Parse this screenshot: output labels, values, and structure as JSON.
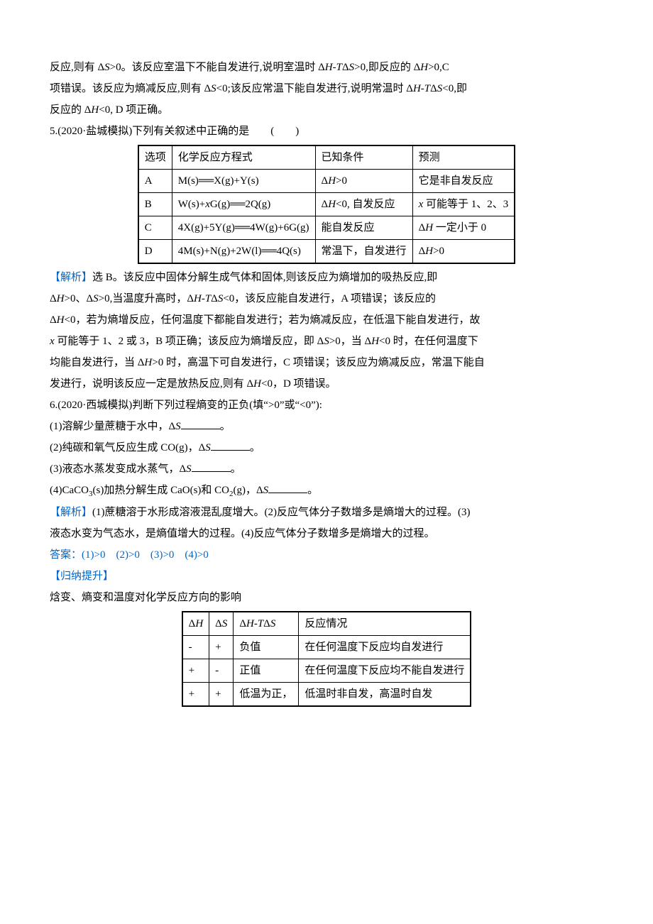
{
  "intro": {
    "p1a": "反应,则有 Δ",
    "p1b": ">0。该反应室温下不能自发进行,说明室温时 Δ",
    "p1c": "-",
    "p1d": "Δ",
    "p1e": ">0,即反应的 Δ",
    "p1f": ">0,C",
    "p2a": "项错误。该反应为熵减反应,则有 Δ",
    "p2b": "<0;该反应常温下能自发进行,说明常温时 Δ",
    "p2c": "-",
    "p2d": "Δ",
    "p2e": "<0,即",
    "p3a": "反应的 Δ",
    "p3b": "<0, D 项正确。"
  },
  "q5": {
    "title": "5.(2020·盐城模拟)下列有关叙述中正确的是　　(　　)",
    "h1": "选项",
    "h2": "化学反应方程式",
    "h3": "已知条件",
    "h4": "预测",
    "rA1": "A",
    "rA2a": "M(s)══X(g)+Y(s)",
    "rA3a": "Δ",
    "rA3b": ">0",
    "rA4": "它是非自发反应",
    "rB1": "B",
    "rB2a": "W(s)+",
    "rB2b": "G(g)══2Q(g)",
    "rB3a": "Δ",
    "rB3b": "<0, 自发反应",
    "rB4a": " 可能等于 1、2、3",
    "rC1": "C",
    "rC2": "4X(g)+5Y(g)══4W(g)+6G(g)",
    "rC3": "能自发反应",
    "rC4a": "Δ",
    "rC4b": " 一定小于 0",
    "rD1": "D",
    "rD2": "4M(s)+N(g)+2W(l)══4Q(s)",
    "rD3": "常温下，自发进行",
    "rD4a": "Δ",
    "rD4b": ">0"
  },
  "a5": {
    "p1a": "【解析】",
    "p1b": "选 B。该反应中固体分解生成气体和固体,则该反应为熵增加的吸热反应,即",
    "p2a": "Δ",
    "p2b": ">0、Δ",
    "p2c": ">0,当温度升高时，Δ",
    "p2d": "-",
    "p2e": "Δ",
    "p2f": "<0，该反应能自发进行，A 项错误；该反应的",
    "p3a": "Δ",
    "p3b": "<0，若为熵增反应，任何温度下都能自发进行；若为熵减反应，在低温下能自发进行，故",
    "p4a": " 可能等于 1、2 或 3，B 项正确；该反应为熵增反应，即 Δ",
    "p4b": ">0，当 Δ",
    "p4c": "<0 时，在任何温度下",
    "p5a": "均能自发进行，当 Δ",
    "p5b": ">0 时，高温下可自发进行，C 项错误；该反应为熵减反应，常温下能自",
    "p6a": "发进行，说明该反应一定是放热反应,则有 Δ",
    "p6b": "<0，D 项错误。"
  },
  "q6": {
    "title": "6.(2020·西城模拟)判断下列过程熵变的正负(填“>0”或“<0”):",
    "i1a": "(1)溶解少量蔗糖于水中，Δ",
    "i1b": "。",
    "i2a": "(2)纯碳和氧气反应生成 CO(g)，Δ",
    "i2b": "。",
    "i3a": "(3)液态水蒸发变成水蒸气，Δ",
    "i3b": "。",
    "i4a": "(4)CaCO",
    "i4b": "(s)加热分解生成 CaO(s)和 CO",
    "i4c": "(g)，Δ",
    "i4d": "。"
  },
  "a6": {
    "p1a": "【解析】",
    "p1b": "(1)蔗糖溶于水形成溶液混乱度增大。(2)反应气体分子数增多是熵增大的过程。(3)",
    "p2": "液态水变为气态水，是熵值增大的过程。(4)反应气体分子数增多是熵增大的过程。",
    "ans": "答案：(1)>0　(2)>0　(3)>0　(4)>0"
  },
  "sum": {
    "t1": "【归纳提升】",
    "t2": "焓变、熵变和温度对化学反应方向的影响",
    "h1": "Δ",
    "h2": "Δ",
    "h3": "Δ",
    "h3b": "-",
    "h3c": "Δ",
    "h4": "反应情况",
    "r1a": "-",
    "r1b": "+",
    "r1c": "负值",
    "r1d": "在任何温度下反应均自发进行",
    "r2a": "+",
    "r2b": "-",
    "r2c": "正值",
    "r2d": "在任何温度下反应均不能自发进行",
    "r3a": "+",
    "r3b": "+",
    "r3c": "低温为正，",
    "r3d": "低温时非自发，高温时自发"
  },
  "sym": {
    "H": "H",
    "S": "S",
    "T": "T",
    "x": "x"
  }
}
